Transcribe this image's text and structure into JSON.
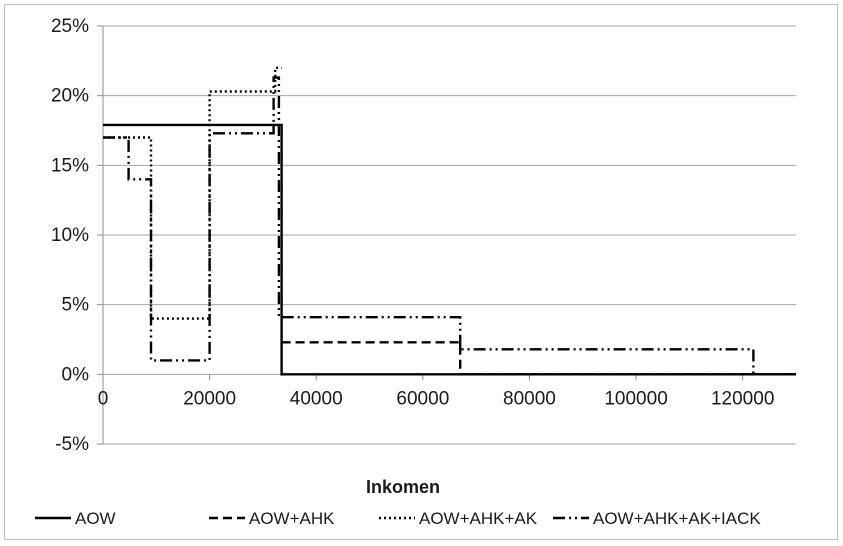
{
  "chart_data": {
    "type": "line",
    "title": "",
    "xlabel": "Inkomen",
    "ylabel": "",
    "xlim": [
      0,
      130000
    ],
    "ylim": [
      -5,
      25
    ],
    "x_ticks": [
      0,
      20000,
      40000,
      60000,
      80000,
      100000,
      120000
    ],
    "x_tick_labels": [
      "0",
      "20000",
      "40000",
      "60000",
      "80000",
      "100000",
      "120000"
    ],
    "y_ticks": [
      -5,
      0,
      5,
      10,
      15,
      20,
      25
    ],
    "y_tick_labels": [
      "-5%",
      "0%",
      "5%",
      "10%",
      "15%",
      "20%",
      "25%"
    ],
    "grid": "horizontal",
    "legend_position": "bottom",
    "series": [
      {
        "name": "AOW",
        "style": "solid",
        "color": "#000000",
        "x": [
          0,
          33500,
          33500,
          130000
        ],
        "y": [
          17.9,
          17.9,
          0,
          0
        ]
      },
      {
        "name": "AOW+AHK",
        "style": "dashed",
        "color": "#000000",
        "x": [
          33500,
          67000,
          67000,
          130000
        ],
        "y": [
          2.3,
          2.3,
          0,
          0
        ]
      },
      {
        "name": "AOW+AHK+AK",
        "style": "dotted",
        "color": "#000000",
        "x": [
          0,
          9000,
          9000,
          20000,
          20000,
          32300,
          32300,
          33500
        ],
        "y": [
          17,
          17,
          4,
          4,
          20.3,
          20.3,
          22,
          22
        ]
      },
      {
        "name": "AOW+AHK+AK+IACK",
        "style": "dash-dot-dot",
        "color": "#000000",
        "x": [
          0,
          4800,
          4800,
          9000,
          9000,
          20000,
          20000,
          32000,
          32000,
          33000,
          33000,
          67000,
          67000,
          122000,
          122000,
          130000
        ],
        "y": [
          17,
          17,
          14,
          14,
          1,
          1,
          17.3,
          17.3,
          21.3,
          21.3,
          4.1,
          4.1,
          1.8,
          1.8,
          0,
          0
        ]
      }
    ]
  }
}
